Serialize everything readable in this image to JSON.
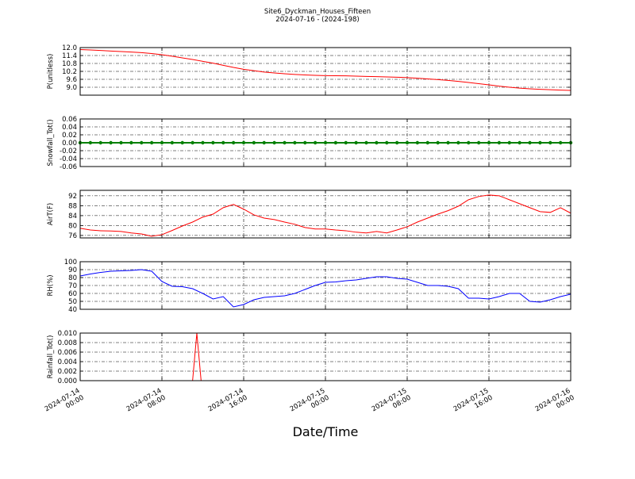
{
  "figure": {
    "title": "Site6_Dyckman_Houses_Fifteen",
    "subtitle": "2024-07-16 - (2024-198)",
    "xlabel": "Date/Time",
    "xlim": [
      "2024-07-14 00:00",
      "2024-07-16 00:00"
    ],
    "xticks": [
      "2024-07-14 00:00",
      "2024-07-14 08:00",
      "2024-07-14 16:00",
      "2024-07-15 00:00",
      "2024-07-15 08:00",
      "2024-07-15 16:00",
      "2024-07-16 00:00"
    ],
    "grid": true,
    "x": [
      "2024-07-14 00:00",
      "2024-07-14 01:00",
      "2024-07-14 02:00",
      "2024-07-14 03:00",
      "2024-07-14 04:00",
      "2024-07-14 05:00",
      "2024-07-14 06:00",
      "2024-07-14 07:00",
      "2024-07-14 08:00",
      "2024-07-14 09:00",
      "2024-07-14 10:00",
      "2024-07-14 11:00",
      "2024-07-14 12:00",
      "2024-07-14 13:00",
      "2024-07-14 14:00",
      "2024-07-14 15:00",
      "2024-07-14 16:00",
      "2024-07-14 17:00",
      "2024-07-14 18:00",
      "2024-07-14 19:00",
      "2024-07-14 20:00",
      "2024-07-14 21:00",
      "2024-07-14 22:00",
      "2024-07-14 23:00",
      "2024-07-15 00:00",
      "2024-07-15 01:00",
      "2024-07-15 02:00",
      "2024-07-15 03:00",
      "2024-07-15 04:00",
      "2024-07-15 05:00",
      "2024-07-15 06:00",
      "2024-07-15 07:00",
      "2024-07-15 08:00",
      "2024-07-15 09:00",
      "2024-07-15 10:00",
      "2024-07-15 11:00",
      "2024-07-15 12:00",
      "2024-07-15 13:00",
      "2024-07-15 14:00",
      "2024-07-15 15:00",
      "2024-07-15 16:00",
      "2024-07-15 17:00",
      "2024-07-15 18:00",
      "2024-07-15 19:00",
      "2024-07-15 20:00",
      "2024-07-15 21:00",
      "2024-07-15 22:00",
      "2024-07-15 23:00",
      "2024-07-16 00:00"
    ]
  },
  "chart_data": [
    {
      "type": "line",
      "ylabel": "P(unitless)",
      "color": "#ff0000",
      "ylim": [
        8.4,
        12.0
      ],
      "yticks": [
        {
          "value": 9.0,
          "label": "9.0"
        },
        9.6,
        10.2,
        10.8,
        11.4,
        {
          "value": 12.0,
          "label": "12.0"
        }
      ],
      "values": [
        11.85,
        11.82,
        11.78,
        11.74,
        11.7,
        11.66,
        11.62,
        11.55,
        11.46,
        11.35,
        11.22,
        11.1,
        10.96,
        10.82,
        10.66,
        10.5,
        10.36,
        10.25,
        10.15,
        10.08,
        10.02,
        9.97,
        9.93,
        9.9,
        9.88,
        9.87,
        9.86,
        9.84,
        9.82,
        9.8,
        9.78,
        9.76,
        9.73,
        9.68,
        9.63,
        9.58,
        9.52,
        9.44,
        9.36,
        9.27,
        9.18,
        9.08,
        9.0,
        8.93,
        8.88,
        8.84,
        8.81,
        8.78,
        8.76
      ]
    },
    {
      "type": "line",
      "ylabel": "Snowfall_Tot()",
      "color": "#008000",
      "markers": true,
      "ylim": [
        -0.06,
        0.06
      ],
      "yticks": [
        -0.06,
        -0.04,
        -0.02,
        {
          "value": 0,
          "label": "0.00"
        },
        0.02,
        0.04,
        0.06
      ],
      "values": [
        0,
        0,
        0,
        0,
        0,
        0,
        0,
        0,
        0,
        0,
        0,
        0,
        0,
        0,
        0,
        0,
        0,
        0,
        0,
        0,
        0,
        0,
        0,
        0,
        0,
        0,
        0,
        0,
        0,
        0,
        0,
        0,
        0,
        0,
        0,
        0,
        0,
        0,
        0,
        0,
        0,
        0,
        0,
        0,
        0,
        0,
        0,
        0,
        0
      ]
    },
    {
      "type": "line",
      "ylabel": "AirT(F)",
      "color": "#ff0000",
      "ylim": [
        75,
        94.2
      ],
      "yticks": [
        76,
        80,
        84,
        88,
        92
      ],
      "values": [
        78.9,
        78.2,
        77.9,
        77.8,
        77.6,
        77.0,
        76.6,
        75.7,
        76.3,
        78,
        79.8,
        81.4,
        83.4,
        84.6,
        87.2,
        88.5,
        86.6,
        84.3,
        83,
        82.4,
        81.4,
        80.5,
        79.2,
        78.6,
        78.6,
        78.2,
        77.9,
        77.3,
        77,
        77.6,
        77,
        78.2,
        79.5,
        81.4,
        83,
        84.6,
        86,
        87.8,
        90.4,
        91.7,
        92.3,
        92,
        90.4,
        88.8,
        87.2,
        85.6,
        85.3,
        87.2,
        85
      ]
    },
    {
      "type": "line",
      "ylabel": "RH(%)",
      "color": "#0000ff",
      "ylim": [
        40,
        100
      ],
      "yticks": [
        40,
        50,
        60,
        70,
        80,
        90,
        100
      ],
      "values": [
        82,
        84.5,
        86.5,
        88,
        88.5,
        89,
        90,
        88,
        75,
        69,
        68.5,
        66,
        60,
        53,
        56,
        43,
        46,
        52,
        55,
        56,
        57,
        60,
        65,
        70,
        74,
        74.5,
        76,
        77,
        79,
        81,
        81,
        79,
        78,
        74,
        70,
        70,
        69,
        66,
        54,
        54,
        53,
        56,
        60,
        60,
        50,
        49,
        52,
        56,
        59
      ]
    },
    {
      "type": "line",
      "ylabel": "Rainfall_Tot()",
      "color": "#ff0000",
      "ylim": [
        0,
        0.01
      ],
      "yticks": [
        {
          "value": 0,
          "label": "0.000"
        },
        0.002,
        0.004,
        0.006,
        0.008,
        {
          "value": 0.01,
          "label": "0.010"
        }
      ],
      "x": [
        "2024-07-14 00:00",
        "2024-07-14 11:00",
        "2024-07-14 11:25",
        "2024-07-14 11:50",
        "2024-07-16 00:00"
      ],
      "values": [
        0,
        0,
        0.01,
        0,
        0
      ]
    }
  ]
}
